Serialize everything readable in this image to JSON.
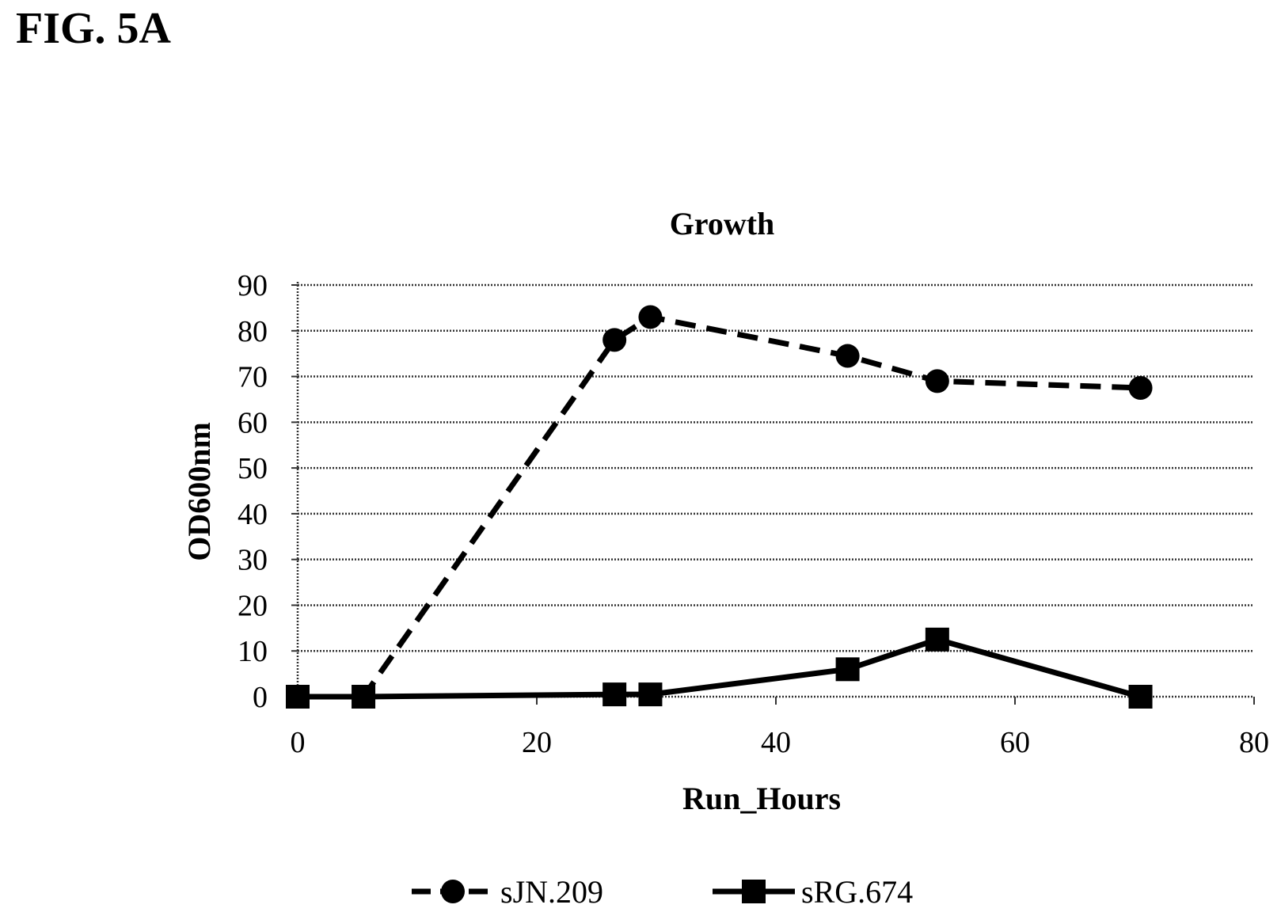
{
  "figure_label": "FIG. 5A",
  "chart_data": {
    "type": "line",
    "title": "Growth",
    "xlabel": "Run_Hours",
    "ylabel": "OD600nm",
    "xlim": [
      0,
      80
    ],
    "ylim": [
      0,
      90
    ],
    "xticks": [
      0,
      20,
      40,
      60,
      80
    ],
    "yticks": [
      0,
      10,
      20,
      30,
      40,
      50,
      60,
      70,
      80,
      90
    ],
    "grid": "horizontal dotted",
    "legend_position": "bottom",
    "series": [
      {
        "name": "sJN.209",
        "line_style": "dashed",
        "marker": "circle",
        "color": "#000000",
        "points": [
          {
            "x": 0,
            "y": 0
          },
          {
            "x": 5.5,
            "y": 0
          },
          {
            "x": 26.5,
            "y": 78
          },
          {
            "x": 29.5,
            "y": 83
          },
          {
            "x": 46,
            "y": 74.5
          },
          {
            "x": 53.5,
            "y": 69
          },
          {
            "x": 70.5,
            "y": 67.5
          }
        ]
      },
      {
        "name": "sRG.674",
        "line_style": "solid",
        "marker": "square",
        "color": "#000000",
        "points": [
          {
            "x": 0,
            "y": 0
          },
          {
            "x": 5.5,
            "y": 0
          },
          {
            "x": 26.5,
            "y": 0.5
          },
          {
            "x": 29.5,
            "y": 0.5
          },
          {
            "x": 46,
            "y": 6
          },
          {
            "x": 53.5,
            "y": 12.5
          },
          {
            "x": 70.5,
            "y": 0
          }
        ]
      }
    ]
  }
}
